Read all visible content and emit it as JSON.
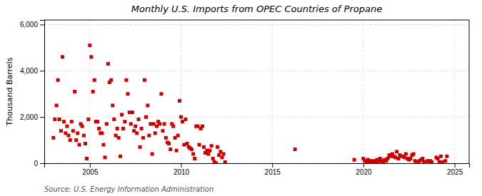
{
  "chart_data": {
    "type": "scatter",
    "title": "Monthly U.S. Imports from OPEC Countries of Propane",
    "y_label": "Thousand Barrels",
    "annotations": [
      "Source: U.S. Energy Information Administration"
    ],
    "color": "#cc0000",
    "marker": "square",
    "grid": true,
    "xlim": [
      2002.5,
      2025.8
    ],
    "ylim": [
      0,
      6200
    ],
    "xticks": [
      2005,
      2010,
      2015,
      2020,
      2025
    ],
    "yticks": [
      0,
      {
        "value": 2000,
        "label": "2,000"
      },
      {
        "value": 4000,
        "label": "4,000"
      },
      {
        "value": 6000,
        "label": "6,000"
      }
    ],
    "x": [
      2003.0,
      2003.08,
      2003.17,
      2003.25,
      2003.33,
      2003.42,
      2003.5,
      2003.58,
      2003.67,
      2003.75,
      2003.83,
      2003.92,
      2004.0,
      2004.08,
      2004.17,
      2004.25,
      2004.33,
      2004.42,
      2004.5,
      2004.58,
      2004.67,
      2004.75,
      2004.83,
      2004.92,
      2005.0,
      2005.08,
      2005.17,
      2005.25,
      2005.33,
      2005.42,
      2005.5,
      2005.58,
      2005.67,
      2005.75,
      2005.83,
      2005.92,
      2006.0,
      2006.08,
      2006.17,
      2006.25,
      2006.33,
      2006.42,
      2006.5,
      2006.58,
      2006.67,
      2006.75,
      2006.83,
      2006.92,
      2007.0,
      2007.08,
      2007.17,
      2007.25,
      2007.33,
      2007.42,
      2007.5,
      2007.58,
      2007.67,
      2007.75,
      2007.83,
      2007.92,
      2008.0,
      2008.08,
      2008.17,
      2008.25,
      2008.33,
      2008.42,
      2008.5,
      2008.58,
      2008.67,
      2008.75,
      2008.83,
      2008.92,
      2009.0,
      2009.08,
      2009.17,
      2009.25,
      2009.33,
      2009.42,
      2009.5,
      2009.58,
      2009.67,
      2009.75,
      2009.83,
      2009.92,
      2010.0,
      2010.08,
      2010.17,
      2010.25,
      2010.33,
      2010.42,
      2010.5,
      2010.58,
      2010.67,
      2010.75,
      2010.83,
      2010.92,
      2011.0,
      2011.08,
      2011.17,
      2011.25,
      2011.33,
      2011.42,
      2011.5,
      2011.58,
      2011.67,
      2011.75,
      2011.83,
      2011.92,
      2012.0,
      2012.08,
      2012.17,
      2012.25,
      2012.33,
      2012.42,
      2016.25,
      2019.5,
      2020.0,
      2020.08,
      2020.17,
      2020.25,
      2020.33,
      2020.42,
      2020.5,
      2020.58,
      2020.67,
      2020.75,
      2020.83,
      2020.92,
      2021.0,
      2021.08,
      2021.17,
      2021.25,
      2021.33,
      2021.42,
      2021.5,
      2021.58,
      2021.67,
      2021.75,
      2021.83,
      2021.92,
      2022.0,
      2022.08,
      2022.17,
      2022.25,
      2022.33,
      2022.42,
      2022.5,
      2022.58,
      2022.67,
      2022.75,
      2022.83,
      2022.92,
      2023.0,
      2023.08,
      2023.17,
      2023.25,
      2023.33,
      2023.5,
      2023.58,
      2023.67,
      2023.75,
      2024.0,
      2024.08,
      2024.17,
      2024.25,
      2024.33,
      2024.5,
      2024.58
    ],
    "values": [
      1100,
      1900,
      2500,
      3600,
      1900,
      1400,
      4600,
      1800,
      1300,
      1600,
      1200,
      1000,
      1800,
      1400,
      3100,
      1000,
      1300,
      800,
      1700,
      1600,
      1200,
      850,
      200,
      1900,
      5100,
      4600,
      3100,
      3600,
      1800,
      1800,
      1500,
      1300,
      1300,
      800,
      250,
      1700,
      4300,
      3500,
      3600,
      2500,
      1900,
      1200,
      1500,
      1100,
      300,
      2100,
      1500,
      1800,
      3600,
      3000,
      2200,
      1700,
      2200,
      1400,
      1600,
      1300,
      1900,
      700,
      1500,
      1100,
      3600,
      2000,
      2500,
      1200,
      1700,
      400,
      1700,
      1300,
      1600,
      1800,
      1700,
      3000,
      1400,
      1700,
      1100,
      900,
      850,
      600,
      1700,
      1600,
      1100,
      550,
      1200,
      2700,
      2000,
      1800,
      800,
      1900,
      850,
      700,
      650,
      600,
      400,
      200,
      1600,
      1600,
      800,
      1500,
      1600,
      700,
      450,
      550,
      400,
      550,
      750,
      200,
      50,
      0,
      700,
      350,
      500,
      250,
      400,
      50,
      600,
      150,
      200,
      100,
      50,
      150,
      50,
      100,
      50,
      100,
      50,
      150,
      50,
      200,
      100,
      50,
      150,
      100,
      200,
      350,
      300,
      400,
      300,
      250,
      500,
      200,
      350,
      300,
      300,
      250,
      400,
      200,
      150,
      200,
      350,
      400,
      100,
      50,
      50,
      100,
      150,
      200,
      50,
      100,
      50,
      100,
      50,
      250,
      200,
      50,
      300,
      50,
      100,
      300
    ]
  }
}
